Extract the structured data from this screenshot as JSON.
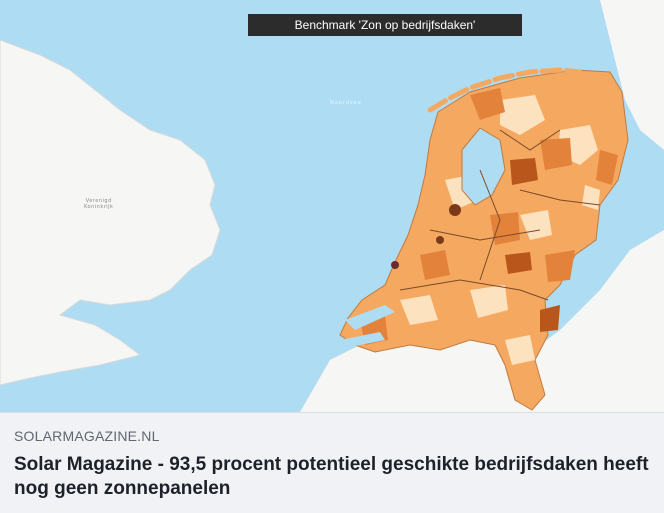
{
  "map": {
    "title": "Benchmark 'Zon op bedrijfsdaken'",
    "sea_label": "Noordzee",
    "uk_label_line1": "Verenigd",
    "uk_label_line2": "Koninkrijk",
    "colors": {
      "sea": "#aedcf3",
      "land": "#f6f6f4",
      "low": "#fde2bf",
      "mid": "#f5a860",
      "high": "#e3823a",
      "dark": "#b8561c",
      "border": "#7a4a2a"
    }
  },
  "link_preview": {
    "domain": "SOLARMAGAZINE.NL",
    "headline": "Solar Magazine - 93,5 procent potentieel geschikte bedrijfsdaken heeft nog geen zonnepanelen"
  }
}
